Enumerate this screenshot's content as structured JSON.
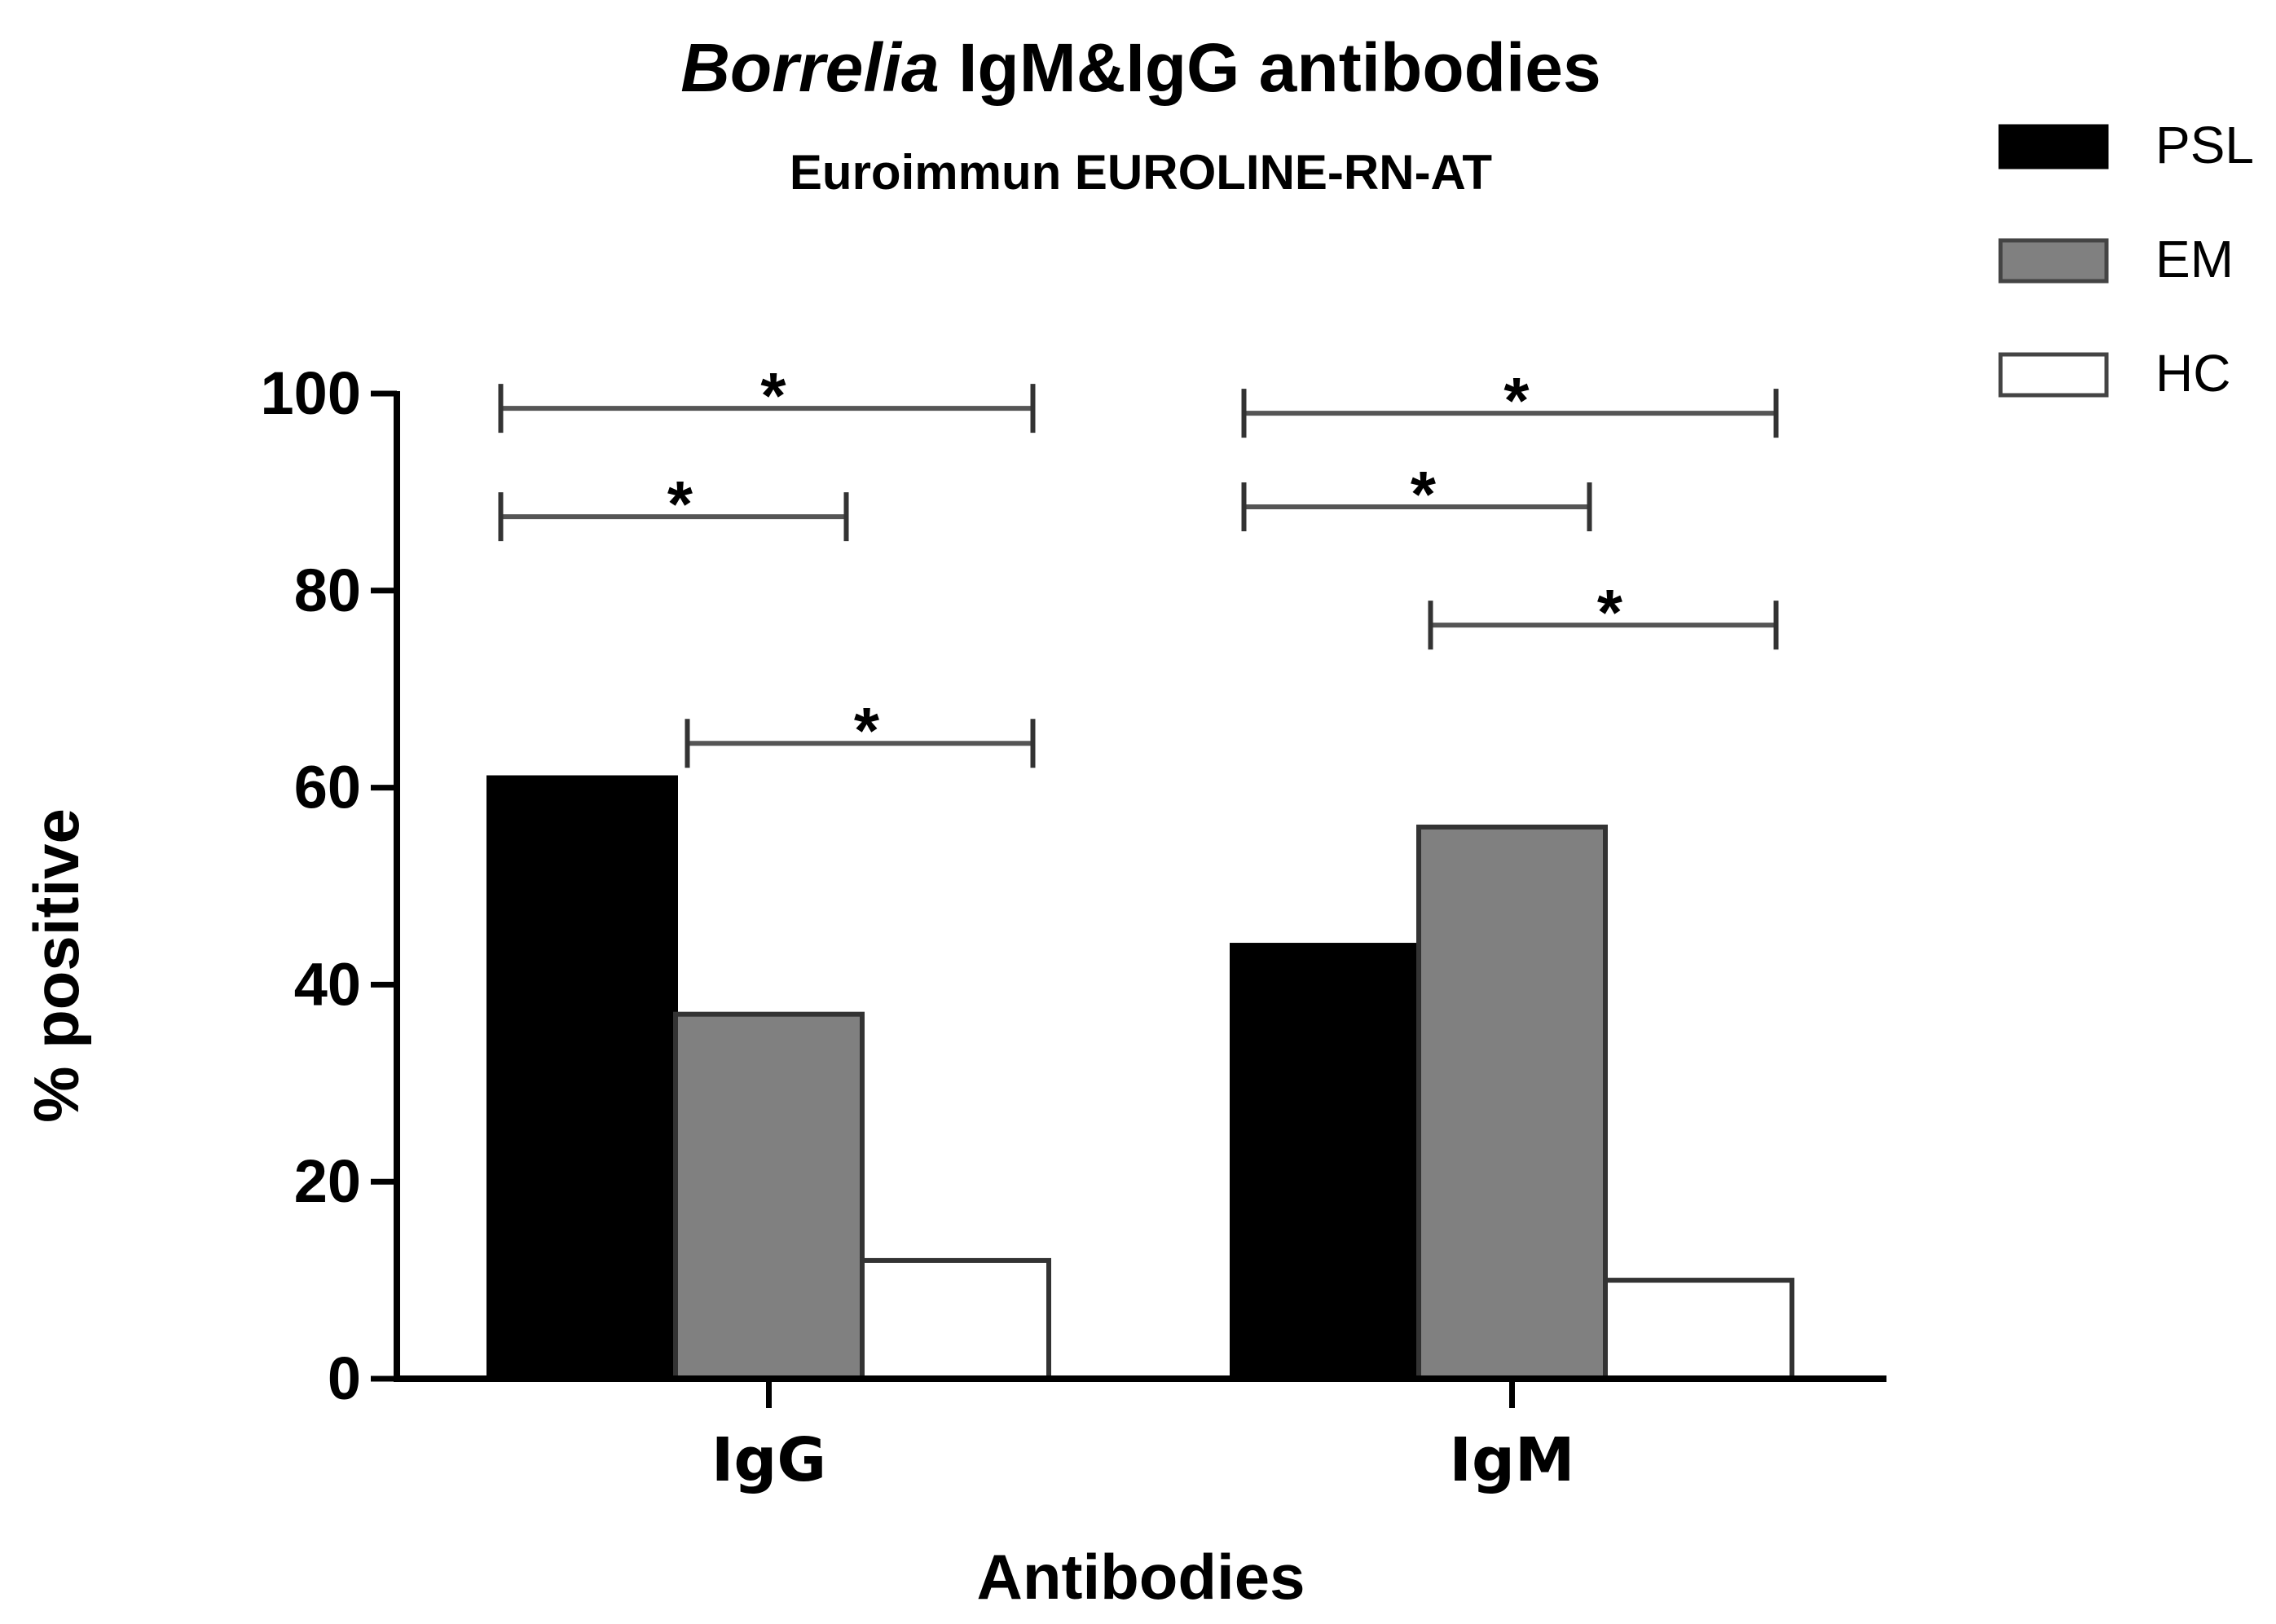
{
  "chart_data": {
    "type": "bar",
    "title_italic": "Borrelia",
    "title_rest": " IgM&IgG antibodies",
    "subtitle": "Euroimmun EUROLINE-RN-AT",
    "xlabel": "Antibodies",
    "ylabel": "% positive",
    "ylim": [
      0,
      100
    ],
    "yticks": [
      0,
      20,
      40,
      60,
      80,
      100
    ],
    "categories": [
      "IgG",
      "IgM"
    ],
    "series": [
      {
        "name": "PSL",
        "values": [
          61,
          44
        ],
        "color": "#000000"
      },
      {
        "name": "EM",
        "values": [
          37,
          56
        ],
        "color": "#808080"
      },
      {
        "name": "HC",
        "values": [
          12,
          10
        ],
        "color": "#ffffff"
      }
    ],
    "legend_position": "top-right",
    "significance": [
      {
        "category": "IgG",
        "from": "PSL",
        "to": "HC",
        "label": "*",
        "y": 98.5
      },
      {
        "category": "IgG",
        "from": "PSL",
        "to": "EM",
        "label": "*",
        "y": 87.5
      },
      {
        "category": "IgG",
        "from": "EM",
        "to": "HC",
        "label": "*",
        "y": 64.5
      },
      {
        "category": "IgM",
        "from": "PSL",
        "to": "HC",
        "label": "*",
        "y": 98
      },
      {
        "category": "IgM",
        "from": "PSL",
        "to": "EM",
        "label": "*",
        "y": 88.5
      },
      {
        "category": "IgM",
        "from": "EM",
        "to": "HC",
        "label": "*",
        "y": 76.5
      }
    ]
  }
}
